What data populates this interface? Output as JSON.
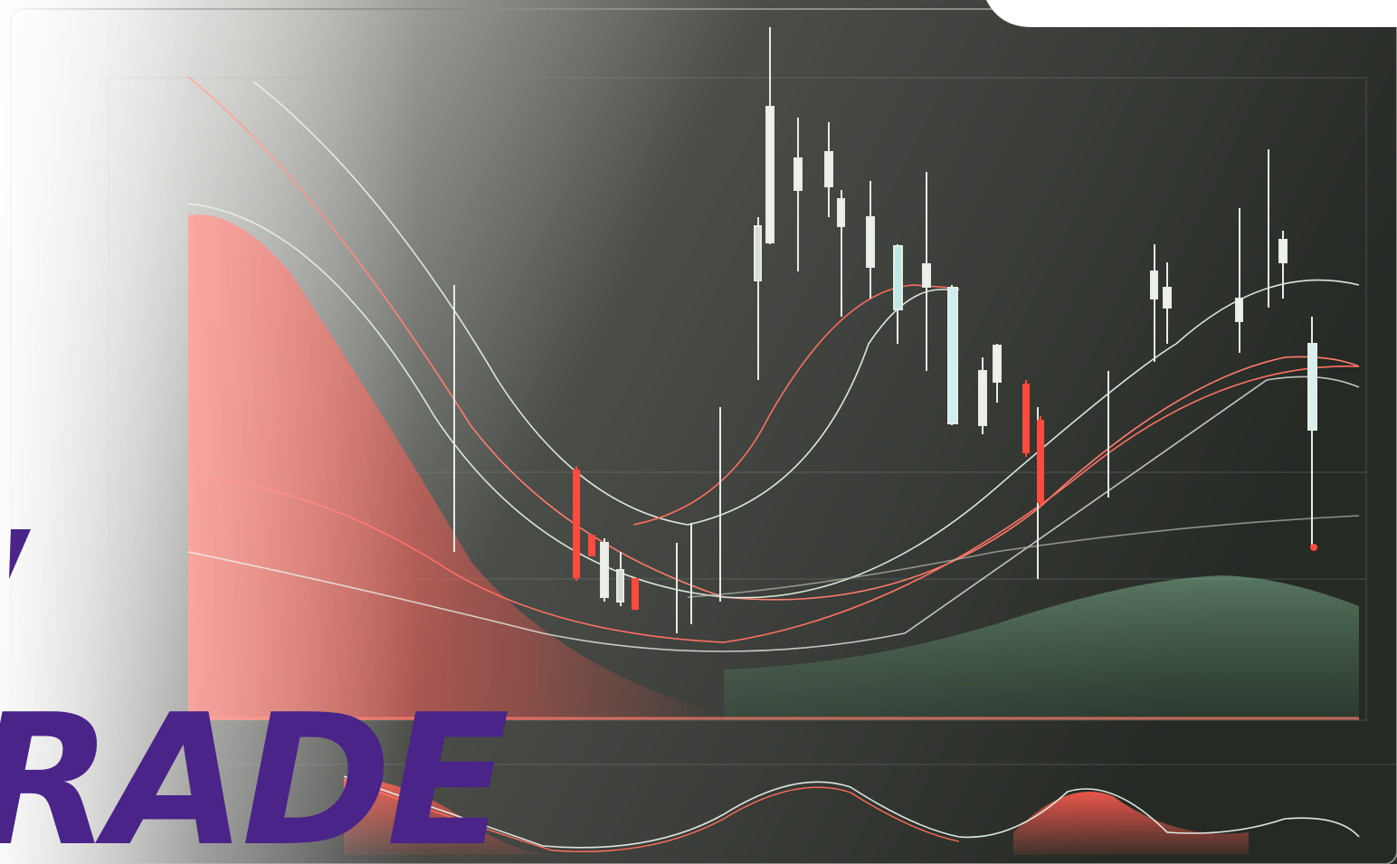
{
  "banner": {
    "text": "RADE"
  }
}
